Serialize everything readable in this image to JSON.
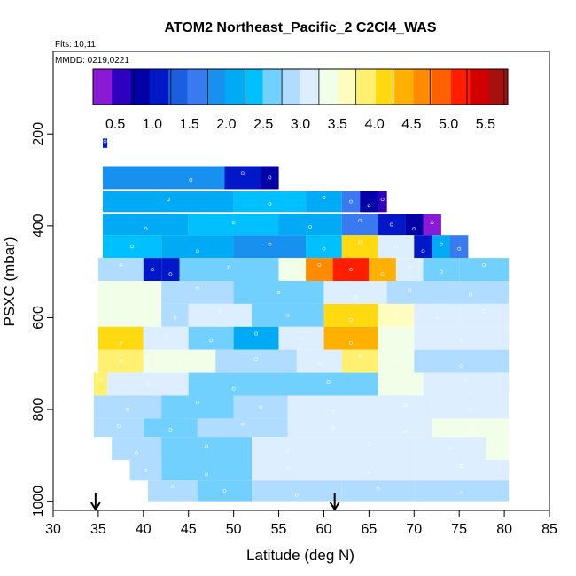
{
  "chart_data": {
    "type": "heatmap",
    "title": "ATOM2 Northeast_Pacific_2 C2Cl4_WAS",
    "flights_note": "Flts: 10,11",
    "dates_note": "MMDD: 0219,0221",
    "xlabel": "Latitude (deg N)",
    "ylabel": "PSXC (mbar)",
    "xlim": [
      30,
      85
    ],
    "ylim": [
      1020,
      20
    ],
    "y_reversed": true,
    "x_ticks": [
      "30",
      "35",
      "40",
      "45",
      "50",
      "55",
      "60",
      "65",
      "70",
      "75",
      "80",
      "85"
    ],
    "y_ticks": [
      "200",
      "400",
      "600",
      "800",
      "1000"
    ],
    "colorbar": {
      "min": 0.2,
      "max": 5.8,
      "tick_labels": [
        "0.5",
        "1.0",
        "1.5",
        "2.0",
        "2.5",
        "3.0",
        "3.5",
        "4.0",
        "4.5",
        "5.0",
        "5.5"
      ],
      "colors": [
        "#8b1ad6",
        "#3000c0",
        "#0000a6",
        "#0018c8",
        "#1a5fe0",
        "#3a7af0",
        "#1890f0",
        "#00aaf4",
        "#00c0ff",
        "#72d0ff",
        "#b0dcff",
        "#dceeff",
        "#f2ffe8",
        "#fffcc0",
        "#fff070",
        "#ffda10",
        "#ffb000",
        "#ff8c00",
        "#ff6000",
        "#ff1e00",
        "#d00000",
        "#a81010"
      ]
    },
    "arrows_latitude": [
      34.7,
      61.2
    ],
    "flight_legs": [
      {
        "p": [
          210,
          230
        ],
        "cells": [
          [
            35.5,
            36,
            1.0
          ]
        ]
      },
      {
        "p": [
          270,
          320
        ],
        "cells": [
          [
            35.5,
            55,
            1.9
          ],
          [
            49,
            53,
            1.2
          ],
          [
            53,
            55,
            0.8
          ]
        ]
      },
      {
        "p": [
          325,
          370
        ],
        "cells": [
          [
            35.5,
            50,
            2.0
          ],
          [
            50,
            58,
            2.3
          ],
          [
            58,
            62,
            2.0
          ],
          [
            62,
            64,
            1.5
          ],
          [
            64,
            66,
            0.9
          ],
          [
            66,
            67,
            0.5
          ]
        ]
      },
      {
        "p": [
          375,
          420
        ],
        "cells": [
          [
            35.5,
            45,
            2.1
          ],
          [
            45,
            55,
            2.4
          ],
          [
            55,
            62,
            2.2
          ],
          [
            62,
            66,
            1.5
          ],
          [
            66,
            69,
            1.0
          ],
          [
            69,
            71,
            0.8
          ],
          [
            71,
            73,
            0.4
          ]
        ]
      },
      {
        "p": [
          420,
          470
        ],
        "cells": [
          [
            35.5,
            42,
            2.4
          ],
          [
            42,
            50,
            2.0
          ],
          [
            50,
            58,
            1.8
          ],
          [
            58,
            62,
            2.3
          ],
          [
            62,
            66,
            4.2
          ],
          [
            66,
            70,
            3.0
          ],
          [
            70,
            72,
            1.0
          ],
          [
            72,
            74,
            2.0
          ],
          [
            74,
            76,
            1.5
          ]
        ]
      },
      {
        "p": [
          470,
          520
        ],
        "cells": [
          [
            35,
            40,
            2.8
          ],
          [
            40,
            42,
            1.2
          ],
          [
            42,
            44,
            1.0
          ],
          [
            44,
            55,
            2.6
          ],
          [
            55,
            58,
            3.4
          ],
          [
            58,
            61,
            4.6
          ],
          [
            61,
            65,
            5.1
          ],
          [
            65,
            68,
            4.3
          ],
          [
            68,
            71,
            3.0
          ],
          [
            71,
            75,
            2.5
          ],
          [
            75,
            80.5,
            2.7
          ]
        ]
      },
      {
        "p": [
          520,
          570
        ],
        "cells": [
          [
            35,
            42,
            3.3
          ],
          [
            42,
            50,
            2.8
          ],
          [
            50,
            60,
            2.6
          ],
          [
            60,
            67,
            3.1
          ],
          [
            67,
            72,
            2.9
          ],
          [
            72,
            80.5,
            2.8
          ]
        ]
      },
      {
        "p": [
          570,
          620
        ],
        "cells": [
          [
            35,
            42,
            3.5
          ],
          [
            42,
            45,
            2.9
          ],
          [
            45,
            52,
            3.0
          ],
          [
            52,
            60,
            2.6
          ],
          [
            60,
            66,
            4.1
          ],
          [
            66,
            70,
            3.7
          ],
          [
            70,
            75,
            3.1
          ],
          [
            75,
            80.5,
            3.0
          ]
        ]
      },
      {
        "p": [
          620,
          670
        ],
        "cells": [
          [
            35,
            40,
            4.1
          ],
          [
            40,
            45,
            3.2
          ],
          [
            45,
            50,
            2.5
          ],
          [
            50,
            55,
            2.2
          ],
          [
            55,
            60,
            3.2
          ],
          [
            60,
            66,
            4.3
          ],
          [
            66,
            70,
            3.5
          ],
          [
            70,
            80.5,
            3.1
          ]
        ]
      },
      {
        "p": [
          670,
          720
        ],
        "cells": [
          [
            35,
            40,
            3.9
          ],
          [
            40,
            48,
            3.3
          ],
          [
            48,
            57,
            2.9
          ],
          [
            57,
            62,
            3.0
          ],
          [
            62,
            66,
            3.8
          ],
          [
            66,
            70,
            3.5
          ],
          [
            70,
            80.5,
            2.9
          ]
        ]
      },
      {
        "p": [
          720,
          770
        ],
        "cells": [
          [
            34.5,
            36,
            3.8
          ],
          [
            36,
            45,
            3.0
          ],
          [
            45,
            55,
            2.7
          ],
          [
            55,
            66,
            2.6
          ],
          [
            66,
            71,
            3.5
          ],
          [
            71,
            80.5,
            3.2
          ]
        ]
      },
      {
        "p": [
          770,
          820
        ],
        "cells": [
          [
            34.5,
            42,
            2.8
          ],
          [
            42,
            50,
            2.7
          ],
          [
            50,
            56,
            2.8
          ],
          [
            56,
            66,
            3.2
          ],
          [
            66,
            72,
            3.1
          ],
          [
            72,
            80.5,
            3.0
          ]
        ]
      },
      {
        "p": [
          820,
          860
        ],
        "cells": [
          [
            34.5,
            40,
            2.8
          ],
          [
            40,
            46,
            2.6
          ],
          [
            46,
            56,
            2.9
          ],
          [
            56,
            66,
            3.2
          ],
          [
            66,
            72,
            3.0
          ],
          [
            72,
            80.5,
            3.3
          ]
        ]
      },
      {
        "p": [
          860,
          910
        ],
        "cells": [
          [
            36.5,
            42,
            2.8
          ],
          [
            42,
            52,
            2.6
          ],
          [
            52,
            60,
            3.0
          ],
          [
            60,
            70,
            3.2
          ],
          [
            70,
            78,
            3.1
          ],
          [
            78,
            80.5,
            3.4
          ]
        ]
      },
      {
        "p": [
          910,
          955
        ],
        "cells": [
          [
            38.5,
            42,
            2.9
          ],
          [
            42,
            52,
            2.7
          ],
          [
            52,
            60,
            3.0
          ],
          [
            60,
            70,
            3.1
          ],
          [
            70,
            80.5,
            3.2
          ]
        ]
      },
      {
        "p": [
          955,
          1000
        ],
        "cells": [
          [
            40.5,
            46,
            2.8
          ],
          [
            46,
            52,
            2.7
          ],
          [
            52,
            62,
            2.8
          ],
          [
            62,
            70,
            2.9
          ],
          [
            70,
            80.5,
            2.8
          ]
        ]
      }
    ]
  }
}
